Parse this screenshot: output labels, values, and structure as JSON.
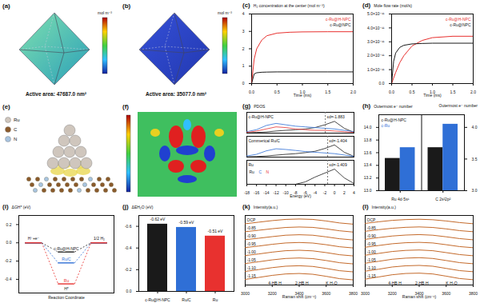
{
  "figures": [
    {
      "label": "(a)",
      "text": "Active area: 47687.0 nm²",
      "colorbar_label": "mol m⁻³"
    },
    {
      "label": "(b)",
      "text": "Active area: 35077.0 nm²",
      "colorbar_label": "mol m⁻³"
    },
    {
      "label": "(e)",
      "legend": [
        "Ru",
        "C",
        "N"
      ]
    },
    {
      "label": "(f)"
    }
  ],
  "chart_data": [
    {
      "type": "line",
      "label": "(c)",
      "ylabel": "H₂ concentration at the center (mol m⁻³)",
      "xlabel": "Time (ms)",
      "x": [
        0,
        0.05,
        0.1,
        0.2,
        0.3,
        0.5,
        0.75,
        1,
        1.5,
        2
      ],
      "series": [
        {
          "name": "c-Ru@H-NPC",
          "color": "#e8312f",
          "values": [
            0,
            1.4,
            2.0,
            2.5,
            2.75,
            2.9,
            2.95,
            2.97,
            2.98,
            2.98
          ]
        },
        {
          "name": "c-Ru@NPC",
          "color": "#1a1a1a",
          "values": [
            0,
            0.55,
            0.62,
            0.65,
            0.66,
            0.67,
            0.67,
            0.67,
            0.67,
            0.67
          ]
        }
      ],
      "xlim": [
        0,
        2
      ],
      "xticks": [
        {
          "value": 0,
          "label": "0.0"
        },
        {
          "value": 0.5,
          "label": "0.5"
        },
        {
          "value": 1,
          "label": "1.0"
        },
        {
          "value": 1.5,
          "label": "1.5"
        },
        {
          "value": 2,
          "label": "2.0"
        }
      ],
      "ylim": [
        0,
        4
      ],
      "yticks": [
        0,
        1,
        2,
        3,
        4
      ],
      "legend": "top-right"
    },
    {
      "type": "line",
      "label": "(d)",
      "ylabel": "Mole flow rate (mol/s)",
      "xlabel": "Time (ms)",
      "x": [
        0,
        0.05,
        0.1,
        0.2,
        0.3,
        0.5,
        0.75,
        1,
        1.5,
        2
      ],
      "series": [
        {
          "name": "c-Ru@H-NPC",
          "color": "#e8312f",
          "values": [
            0,
            4e-12,
            8e-12,
            1.5e-11,
            2e-11,
            2.7e-11,
            3.1e-11,
            3.3e-11,
            3.4e-11,
            3.4e-11
          ]
        },
        {
          "name": "c-Ru@NPC",
          "color": "#1a1a1a",
          "values": [
            0,
            1.6e-11,
            2.2e-11,
            2.6e-11,
            2.75e-11,
            2.85e-11,
            2.88e-11,
            2.9e-11,
            2.9e-11,
            2.9e-11
          ]
        }
      ],
      "xlim": [
        0,
        2
      ],
      "xticks": [
        {
          "value": 0,
          "label": "0.0"
        },
        {
          "value": 0.5,
          "label": "0.5"
        },
        {
          "value": 1,
          "label": "1.0"
        },
        {
          "value": 1.5,
          "label": "1.5"
        },
        {
          "value": 2,
          "label": "2.0"
        }
      ],
      "ylim": [
        0,
        5e-11
      ],
      "yticks": [
        {
          "value": 0,
          "label": "0.0"
        },
        {
          "value": 1e-11,
          "label": "1.0×10⁻¹¹"
        },
        {
          "value": 2e-11,
          "label": "2.0×10⁻¹¹"
        },
        {
          "value": 3e-11,
          "label": "3.0×10⁻¹¹"
        },
        {
          "value": 4e-11,
          "label": "4.0×10⁻¹¹"
        },
        {
          "value": 5e-11,
          "label": "5.0×10⁻¹¹"
        }
      ],
      "legend": "top-right"
    },
    {
      "type": "line",
      "label": "(g)",
      "ylabel": "PDOS",
      "xlabel": "Energy (eV)",
      "x": [
        -18,
        -16,
        -14,
        -12,
        -10,
        -8,
        -6,
        -4,
        -2,
        0,
        2,
        4
      ],
      "xlim": [
        -18,
        4
      ],
      "xticks": [
        -18,
        -16,
        -14,
        -12,
        -10,
        -8,
        -6,
        -4,
        -2,
        0,
        2,
        4
      ],
      "tick_labels": "x",
      "legend": "left",
      "panels": [
        {
          "title": "c-Ru@H-NPC",
          "d_band_center": -1.883,
          "d_band_center_label": "εd=-1.883",
          "ylim": [
            0,
            1.5
          ],
          "series": [
            {
              "name": "Ru",
              "color": "#1a1a1a",
              "values": [
                0.02,
                0.05,
                0.08,
                0.15,
                0.2,
                0.25,
                0.3,
                0.4,
                0.6,
                0.85,
                0.35,
                0.05
              ]
            },
            {
              "name": "C",
              "color": "#2f6fd6",
              "values": [
                0.1,
                0.25,
                0.55,
                0.7,
                0.6,
                0.5,
                0.45,
                0.4,
                0.35,
                0.3,
                0.2,
                0.1
              ]
            },
            {
              "name": "N",
              "color": "#e8312f",
              "values": [
                0.05,
                0.15,
                0.3,
                0.45,
                0.4,
                0.3,
                0.25,
                0.2,
                0.2,
                0.15,
                0.1,
                0.05
              ]
            }
          ]
        },
        {
          "title": "Commerical Ru/C",
          "d_band_center": -1.404,
          "d_band_center_label": "εd=-1.404",
          "ylim": [
            0,
            1.5
          ],
          "series": [
            {
              "name": "Ru",
              "color": "#1a1a1a",
              "values": [
                0.02,
                0.04,
                0.08,
                0.14,
                0.2,
                0.25,
                0.32,
                0.42,
                0.62,
                0.88,
                0.35,
                0.05
              ]
            },
            {
              "name": "C",
              "color": "#2f6fd6",
              "values": [
                0.08,
                0.2,
                0.45,
                0.6,
                0.55,
                0.48,
                0.4,
                0.35,
                0.3,
                0.25,
                0.15,
                0.05
              ]
            }
          ]
        },
        {
          "title": "Ru",
          "d_band_center": -1.409,
          "d_band_center_label": "εd=-1.409",
          "ylim": [
            0,
            1.5
          ],
          "series": [
            {
              "name": "Ru",
              "color": "#1a1a1a",
              "values": [
                0,
                0,
                0,
                0,
                0,
                0,
                0.15,
                0.45,
                0.7,
                0.95,
                0.4,
                0.05
              ]
            }
          ]
        }
      ]
    },
    {
      "type": "bar",
      "label": "(h)",
      "ylabel": "Outermost e⁻ number",
      "y2label": "Outermost e⁻ number",
      "categories": [
        "Ru 4d⁷5s¹",
        "C 2s²2p²"
      ],
      "series": [
        {
          "name": "c-Ru@H-NPC",
          "color": "#1a1a1a",
          "values": [
            13.51,
            null
          ]
        },
        {
          "name": "c-Ru",
          "color": "#2f6fd6",
          "values": [
            13.68,
            null
          ]
        },
        {
          "name": "c-Ru@H-NPC",
          "color": "#1a1a1a",
          "axis": "y2",
          "values": [
            null,
            3.68
          ]
        },
        {
          "name": "c-Ru",
          "color": "#2f6fd6",
          "axis": "y2",
          "values": [
            null,
            4.05
          ]
        }
      ],
      "ylim": [
        13,
        14.2
      ],
      "yticks": [
        {
          "value": 13,
          "label": "13.0"
        },
        {
          "value": 13.2,
          "label": "13.2"
        },
        {
          "value": 13.4,
          "label": "13.4"
        },
        {
          "value": 13.6,
          "label": "13.6"
        },
        {
          "value": 13.8,
          "label": "13.8"
        },
        {
          "value": 14,
          "label": "14.0"
        }
      ],
      "y2lim": [
        3,
        4.2
      ],
      "y2ticks": [
        {
          "value": 3,
          "label": "3.0"
        },
        {
          "value": 3.5,
          "label": "3.5"
        },
        {
          "value": 4,
          "label": "4.0"
        }
      ],
      "legend": "top-left"
    },
    {
      "type": "energy",
      "label": "(i)",
      "ylabel": "ΔGH* (eV)",
      "xlabel": "Reaction Coordinate",
      "categories": [
        "H⁺+e⁻",
        "H*",
        "1/2 H₂"
      ],
      "series": [
        {
          "name": "c-Ru@H-NPC",
          "color": "#1a1a1a",
          "values": [
            0,
            -0.1,
            0
          ]
        },
        {
          "name": "Ru/C",
          "color": "#2f6fd6",
          "values": [
            0,
            -0.22,
            0
          ]
        },
        {
          "name": "Ru",
          "color": "#e8312f",
          "values": [
            0,
            -0.45,
            0
          ]
        }
      ],
      "ylim": [
        -0.55,
        0.3
      ],
      "yticks": [
        {
          "value": -0.4,
          "label": "-0.4"
        },
        {
          "value": -0.2,
          "label": "-0.2"
        },
        {
          "value": 0,
          "label": "0.0"
        },
        {
          "value": 0.2,
          "label": "0.2"
        }
      ],
      "tick_labels": "y"
    },
    {
      "type": "bar",
      "label": "(j)",
      "ylabel": "ΔEH₂O (eV)",
      "categories": [
        "c-Ru@H-NPC",
        "Ru/C",
        "Ru"
      ],
      "values": [
        -0.62,
        -0.59,
        -0.51
      ],
      "value_labels": [
        "-0.62 eV",
        "-0.59 eV",
        "-0.51 eV"
      ],
      "colors": [
        "#1a1a1a",
        "#2f6fd6",
        "#e8312f"
      ],
      "ylim": [
        0,
        -0.7
      ],
      "yticks": [
        {
          "value": 0,
          "label": "0.0"
        },
        {
          "value": -0.2,
          "label": "-0.2"
        },
        {
          "value": -0.4,
          "label": "-0.4"
        },
        {
          "value": -0.6,
          "label": "-0.6"
        }
      ],
      "data_labels": true
    },
    {
      "type": "line",
      "label": "(k)",
      "ylabel": "Intensity(a.u.)",
      "xlabel": "Raman shift (cm⁻¹)",
      "color": "#c46a2b",
      "x": [
        3000,
        3100,
        3200,
        3300,
        3400,
        3500,
        3600,
        3700,
        3800
      ],
      "series": [
        {
          "name": "OCP",
          "values": [
            7.15,
            7.35,
            7.55,
            7.7,
            7.75,
            7.7,
            7.5,
            7.25,
            7.1
          ]
        },
        {
          "name": "-0.85",
          "values": [
            6.15,
            6.33,
            6.52,
            6.68,
            6.74,
            6.69,
            6.5,
            6.26,
            6.1
          ]
        },
        {
          "name": "-0.90",
          "values": [
            5.14,
            5.32,
            5.52,
            5.7,
            5.76,
            5.7,
            5.49,
            5.25,
            5.1
          ]
        },
        {
          "name": "-0.95",
          "values": [
            4.14,
            4.33,
            4.55,
            4.72,
            4.78,
            4.71,
            4.5,
            4.24,
            4.09
          ]
        },
        {
          "name": "-1.00",
          "values": [
            3.13,
            3.33,
            3.56,
            3.74,
            3.8,
            3.72,
            3.5,
            3.23,
            3.08
          ]
        },
        {
          "name": "-1.05",
          "values": [
            2.12,
            2.34,
            2.58,
            2.76,
            2.82,
            2.74,
            2.5,
            2.22,
            2.07
          ]
        },
        {
          "name": "-1.10",
          "values": [
            1.12,
            1.35,
            1.6,
            1.78,
            1.84,
            1.75,
            1.5,
            1.21,
            1.06
          ]
        },
        {
          "name": "-1.15",
          "values": [
            0.11,
            0.36,
            0.62,
            0.8,
            0.86,
            0.76,
            0.5,
            0.2,
            0.05
          ]
        }
      ],
      "xlim": [
        3000,
        3800
      ],
      "xticks": [
        3000,
        3200,
        3400,
        3600,
        3800
      ],
      "ylim": [
        -0.6,
        8.2
      ],
      "tick_labels": "x",
      "annotations": [
        {
          "text": "4-HB·H",
          "x": 3220,
          "y": -0.35
        },
        {
          "text": "2-HB·H",
          "x": 3420,
          "y": -0.35
        },
        {
          "text": "K·H₂O",
          "x": 3640,
          "y": -0.35
        }
      ]
    },
    {
      "type": "line",
      "label": "(l)",
      "ylabel": "Intensity(a.u.)",
      "xlabel": "Raman shift (cm⁻¹)",
      "color": "#c46a2b",
      "x": [
        3000,
        3100,
        3200,
        3300,
        3400,
        3500,
        3600,
        3700,
        3800
      ],
      "series": [
        {
          "name": "OCP",
          "values": [
            7.2,
            7.4,
            7.58,
            7.68,
            7.72,
            7.66,
            7.5,
            7.3,
            7.15
          ]
        },
        {
          "name": "-0.85",
          "values": [
            6.2,
            6.4,
            6.58,
            6.7,
            6.75,
            6.68,
            6.5,
            6.28,
            6.14
          ]
        },
        {
          "name": "-0.90",
          "values": [
            5.18,
            5.4,
            5.6,
            5.72,
            5.78,
            5.7,
            5.5,
            5.27,
            5.12
          ]
        },
        {
          "name": "-0.95",
          "values": [
            4.18,
            4.4,
            4.62,
            4.75,
            4.8,
            4.72,
            4.5,
            4.26,
            4.12
          ]
        },
        {
          "name": "-1.00",
          "values": [
            3.17,
            3.4,
            3.64,
            3.78,
            3.83,
            3.74,
            3.5,
            3.25,
            3.1
          ]
        },
        {
          "name": "-1.05",
          "values": [
            2.16,
            2.4,
            2.66,
            2.8,
            2.86,
            2.76,
            2.5,
            2.23,
            2.09
          ]
        },
        {
          "name": "-1.10",
          "values": [
            1.15,
            1.4,
            1.68,
            1.83,
            1.88,
            1.78,
            1.5,
            1.22,
            1.08
          ]
        },
        {
          "name": "-1.15",
          "values": [
            0.14,
            0.42,
            0.7,
            0.86,
            0.9,
            0.8,
            0.52,
            0.22,
            0.07
          ]
        }
      ],
      "xlim": [
        3000,
        3800
      ],
      "xticks": [
        3000,
        3200,
        3400,
        3600,
        3800
      ],
      "ylim": [
        -0.6,
        8.2
      ],
      "tick_labels": "x",
      "annotations": [
        {
          "text": "4-HB·H",
          "x": 3220,
          "y": -0.35
        },
        {
          "text": "2-HB·H",
          "x": 3420,
          "y": -0.35
        },
        {
          "text": "K·H₂O",
          "x": 3640,
          "y": -0.35
        }
      ]
    }
  ]
}
